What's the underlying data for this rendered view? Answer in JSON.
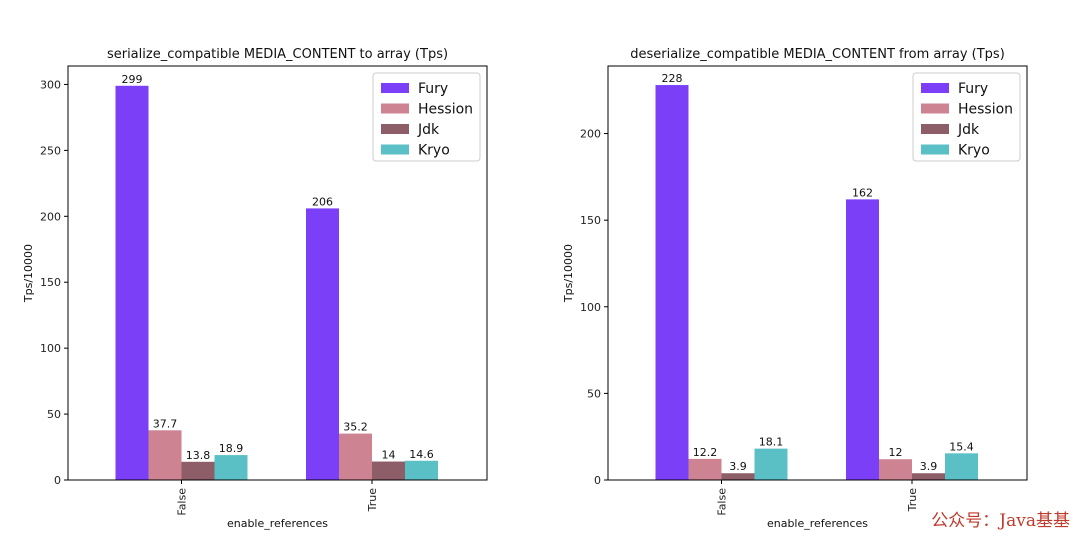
{
  "chart_data": [
    {
      "type": "bar",
      "title": "serialize_compatible MEDIA_CONTENT to array (Tps)",
      "xlabel": "enable_references",
      "ylabel": "Tps/10000",
      "categories": [
        "False",
        "True"
      ],
      "ylim": [
        0,
        314
      ],
      "yticks": [
        0,
        50,
        100,
        150,
        200,
        250,
        300
      ],
      "legend_position": "top-right",
      "series": [
        {
          "name": "Fury",
          "color": "#7b3ff7",
          "values": [
            299,
            206
          ],
          "labels": [
            "299",
            "206"
          ]
        },
        {
          "name": "Hession",
          "color": "#cd8392",
          "values": [
            37.7,
            35.2
          ],
          "labels": [
            "37.7",
            "35.2"
          ]
        },
        {
          "name": "Jdk",
          "color": "#8d5e67",
          "values": [
            13.8,
            14
          ],
          "labels": [
            "13.8",
            "14"
          ]
        },
        {
          "name": "Kryo",
          "color": "#5bc0c6",
          "values": [
            18.9,
            14.6
          ],
          "labels": [
            "18.9",
            "14.6"
          ]
        }
      ]
    },
    {
      "type": "bar",
      "title": "deserialize_compatible MEDIA_CONTENT from array (Tps)",
      "xlabel": "enable_references",
      "ylabel": "Tps/10000",
      "categories": [
        "False",
        "True"
      ],
      "ylim": [
        0,
        239
      ],
      "yticks": [
        0,
        50,
        100,
        150,
        200
      ],
      "legend_position": "top-right",
      "series": [
        {
          "name": "Fury",
          "color": "#7b3ff7",
          "values": [
            228,
            162
          ],
          "labels": [
            "228",
            "162"
          ]
        },
        {
          "name": "Hession",
          "color": "#cd8392",
          "values": [
            12.2,
            12
          ],
          "labels": [
            "12.2",
            "12"
          ]
        },
        {
          "name": "Jdk",
          "color": "#8d5e67",
          "values": [
            3.9,
            3.9
          ],
          "labels": [
            "3.9",
            "3.9"
          ]
        },
        {
          "name": "Kryo",
          "color": "#5bc0c6",
          "values": [
            18.1,
            15.4
          ],
          "labels": [
            "18.1",
            "15.4"
          ]
        }
      ]
    }
  ],
  "watermark": {
    "text": "公众号：Java基基",
    "color": "#c0392b"
  }
}
